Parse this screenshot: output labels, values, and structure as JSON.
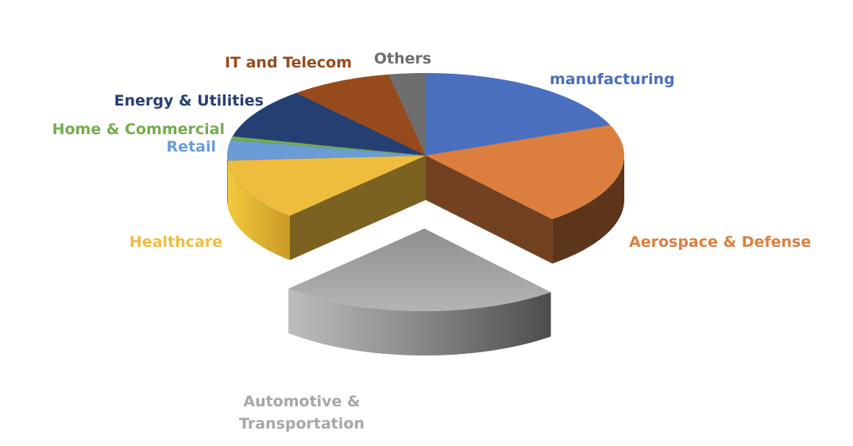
{
  "chart_data": {
    "type": "pie",
    "style": "3d-exploded",
    "title": "",
    "categories": [
      "manufacturing",
      "Aerospace & Defense",
      "Automotive & Transportation",
      "Healthcare",
      "Retail",
      "Home & Commercial",
      "Energy & Utilities",
      "IT and Telecom",
      "Others"
    ],
    "values": [
      19,
      20,
      23,
      12,
      4,
      0.7,
      10,
      8.3,
      3
    ],
    "unit": "%",
    "exploded": [
      "Automotive & Transportation"
    ],
    "colors": [
      "#4a6fbf",
      "#dc7f3e",
      "#a3a3a3",
      "#efbd3e",
      "#6a9cd6",
      "#74ad4c",
      "#263f73",
      "#974a1c",
      "#6e6e6e"
    ],
    "labels": [
      {
        "lines": [
          "manufacturing"
        ],
        "color": "#4a6fbf"
      },
      {
        "lines": [
          "Aerospace & Defense"
        ],
        "color": "#dc7f3e"
      },
      {
        "lines": [
          "Automotive &",
          "Transportation"
        ],
        "color": "#a7a7a7"
      },
      {
        "lines": [
          "Healthcare"
        ],
        "color": "#efbd3e"
      },
      {
        "lines": [
          "Retail"
        ],
        "color": "#6a9cd6"
      },
      {
        "lines": [
          "Home & Commercial"
        ],
        "color": "#74ad4c"
      },
      {
        "lines": [
          "Energy & Utilities"
        ],
        "color": "#263f73"
      },
      {
        "lines": [
          "IT and Telecom"
        ],
        "color": "#974a1c"
      },
      {
        "lines": [
          "Others"
        ],
        "color": "#6e6e6e"
      }
    ],
    "legend": "none"
  }
}
